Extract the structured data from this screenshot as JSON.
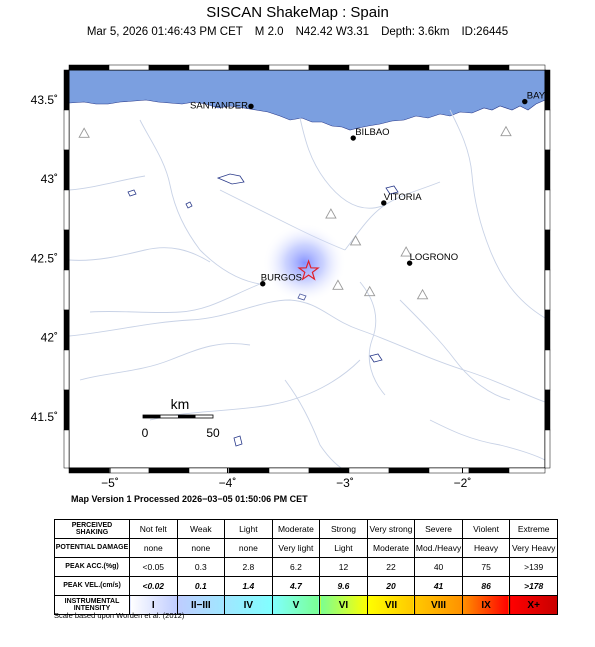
{
  "header": {
    "title": "SISCAN ShakeMap : Spain",
    "date": "Mar  5, 2026 01:46:43 PM CET",
    "magnitude": "M 2.0",
    "location": "N42.42 W3.31",
    "depth": "Depth: 3.6km",
    "event_id": "ID:26445"
  },
  "map": {
    "lat_labels": [
      "43.5˚",
      "43˚",
      "42.5˚",
      "42˚",
      "41.5˚"
    ],
    "lon_labels": [
      "−5˚",
      "−4˚",
      "−3˚",
      "−2˚"
    ],
    "cities": [
      {
        "name": "SANTANDER",
        "lon": -3.8,
        "lat": 43.46
      },
      {
        "name": "BILBAO",
        "lon": -2.93,
        "lat": 43.26
      },
      {
        "name": "VITORIA",
        "lon": -2.67,
        "lat": 42.85
      },
      {
        "name": "LOGRONO",
        "lon": -2.45,
        "lat": 42.47
      },
      {
        "name": "BURGOS",
        "lon": -3.7,
        "lat": 42.34
      },
      {
        "name": "BAY",
        "lon": -1.47,
        "lat": 43.49
      }
    ],
    "epicenter": {
      "lon": -3.31,
      "lat": 42.42
    },
    "stations": [
      {
        "lon": -5.22,
        "lat": 43.29
      },
      {
        "lon": -3.12,
        "lat": 42.78
      },
      {
        "lon": -2.91,
        "lat": 42.61
      },
      {
        "lon": -2.48,
        "lat": 42.54
      },
      {
        "lon": -3.06,
        "lat": 42.33
      },
      {
        "lon": -2.79,
        "lat": 42.29
      },
      {
        "lon": -2.34,
        "lat": 42.27
      },
      {
        "lon": -1.63,
        "lat": 43.3
      }
    ],
    "scale": {
      "label": "km",
      "start": "0",
      "end": "50"
    },
    "colors": {
      "sea": "#7b9fe0",
      "land": "#ffffff",
      "rivers": "#c8d2e6",
      "epicenter": "#e0202a"
    }
  },
  "version_text": "Map Version 1 Processed 2026−03−05 01:50:06 PM CET",
  "legend": {
    "rows": [
      {
        "label": "PERCEIVED SHAKING",
        "values": [
          "Not felt",
          "Weak",
          "Light",
          "Moderate",
          "Strong",
          "Very strong",
          "Severe",
          "Violent",
          "Extreme"
        ],
        "class": "shaking"
      },
      {
        "label": "POTENTIAL DAMAGE",
        "values": [
          "none",
          "none",
          "none",
          "Very light",
          "Light",
          "Moderate",
          "Mod./Heavy",
          "Heavy",
          "Very Heavy"
        ],
        "class": "damage"
      },
      {
        "label": "PEAK ACC.(%g)",
        "values": [
          "<0.05",
          "0.3",
          "2.8",
          "6.2",
          "12",
          "22",
          "40",
          "75",
          ">139"
        ],
        "class": "acc"
      },
      {
        "label": "PEAK VEL.(cm/s)",
        "values": [
          "<0.02",
          "0.1",
          "1.4",
          "4.7",
          "9.6",
          "20",
          "41",
          "86",
          ">178"
        ],
        "class": "vel"
      },
      {
        "label": "INSTRUMENTAL INTENSITY",
        "values": [
          "I",
          "II−III",
          "IV",
          "V",
          "VI",
          "VII",
          "VIII",
          "IX",
          "X+"
        ],
        "class": "intensity"
      }
    ],
    "intensity_colors": [
      "#ffffff",
      "#bfccff",
      "#a0e6ff",
      "#80ffff",
      "#7aff93",
      "#ffff00",
      "#ffc800",
      "#ff9100",
      "#ff0000",
      "#c80000"
    ]
  },
  "credit": "Scale based upon Worden et al. (2012)"
}
